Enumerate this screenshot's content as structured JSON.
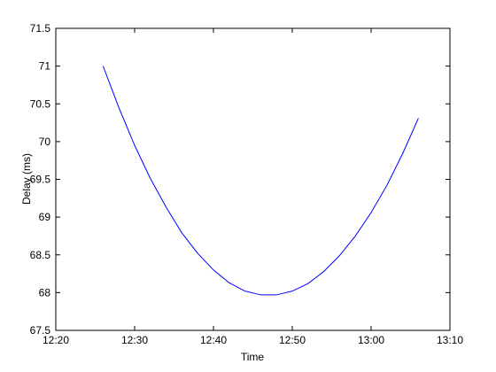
{
  "chart_data": {
    "type": "line",
    "x_label": "Time",
    "y_label": "Delay (ms)",
    "x": [
      "12:26",
      "12:28",
      "12:30",
      "12:32",
      "12:34",
      "12:36",
      "12:38",
      "12:40",
      "12:42",
      "12:44",
      "12:46",
      "12:48",
      "12:50",
      "12:52",
      "12:54",
      "12:56",
      "12:58",
      "13:00",
      "13:02",
      "13:04",
      "13:06"
    ],
    "values": [
      71.0,
      70.45,
      69.95,
      69.51,
      69.13,
      68.79,
      68.52,
      68.3,
      68.13,
      68.02,
      67.97,
      67.97,
      68.02,
      68.12,
      68.28,
      68.49,
      68.75,
      69.06,
      69.42,
      69.84,
      70.31
    ],
    "color": "#0000ff",
    "xlim": [
      "12:20",
      "13:10"
    ],
    "xticks": [
      "12:20",
      "12:30",
      "12:40",
      "12:50",
      "13:00",
      "13:10"
    ],
    "ylim": [
      67.5,
      71.5
    ],
    "yticks": [
      67.5,
      68,
      68.5,
      69,
      69.5,
      70,
      70.5,
      71,
      71.5
    ],
    "grid": false
  }
}
